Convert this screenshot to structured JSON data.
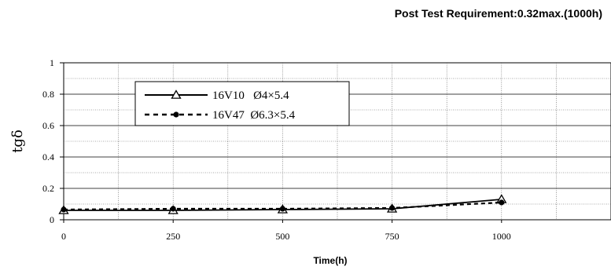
{
  "header_title": "Post Test Requirement:0.32max.(1000h)",
  "chart_data": {
    "type": "line",
    "title": "",
    "xlabel": "Time(h)",
    "ylabel": "tgδ",
    "xlim": [
      0,
      1250
    ],
    "ylim": [
      0,
      1
    ],
    "x_ticks": [
      0,
      250,
      500,
      750,
      1000
    ],
    "x_tick_labels": [
      "0",
      "250",
      "500",
      "750",
      "1000"
    ],
    "y_ticks": [
      0,
      0.2,
      0.4,
      0.6,
      0.8,
      1
    ],
    "y_tick_labels": [
      "0",
      "0.2",
      "0.4",
      "0.6",
      "0.8",
      "1"
    ],
    "grid": true,
    "legend_position": "top-left",
    "series": [
      {
        "name": "16V10   Ø4×5.4",
        "marker": "triangle",
        "line_style": "solid",
        "color": "#000000",
        "x": [
          0,
          250,
          500,
          750,
          1000
        ],
        "y": [
          0.06,
          0.06,
          0.065,
          0.07,
          0.13
        ]
      },
      {
        "name": "16V47  Ø6.3×5.4",
        "marker": "circle",
        "line_style": "dashed",
        "color": "#000000",
        "x": [
          0,
          250,
          500,
          750,
          1000
        ],
        "y": [
          0.065,
          0.07,
          0.07,
          0.075,
          0.11
        ]
      }
    ]
  }
}
